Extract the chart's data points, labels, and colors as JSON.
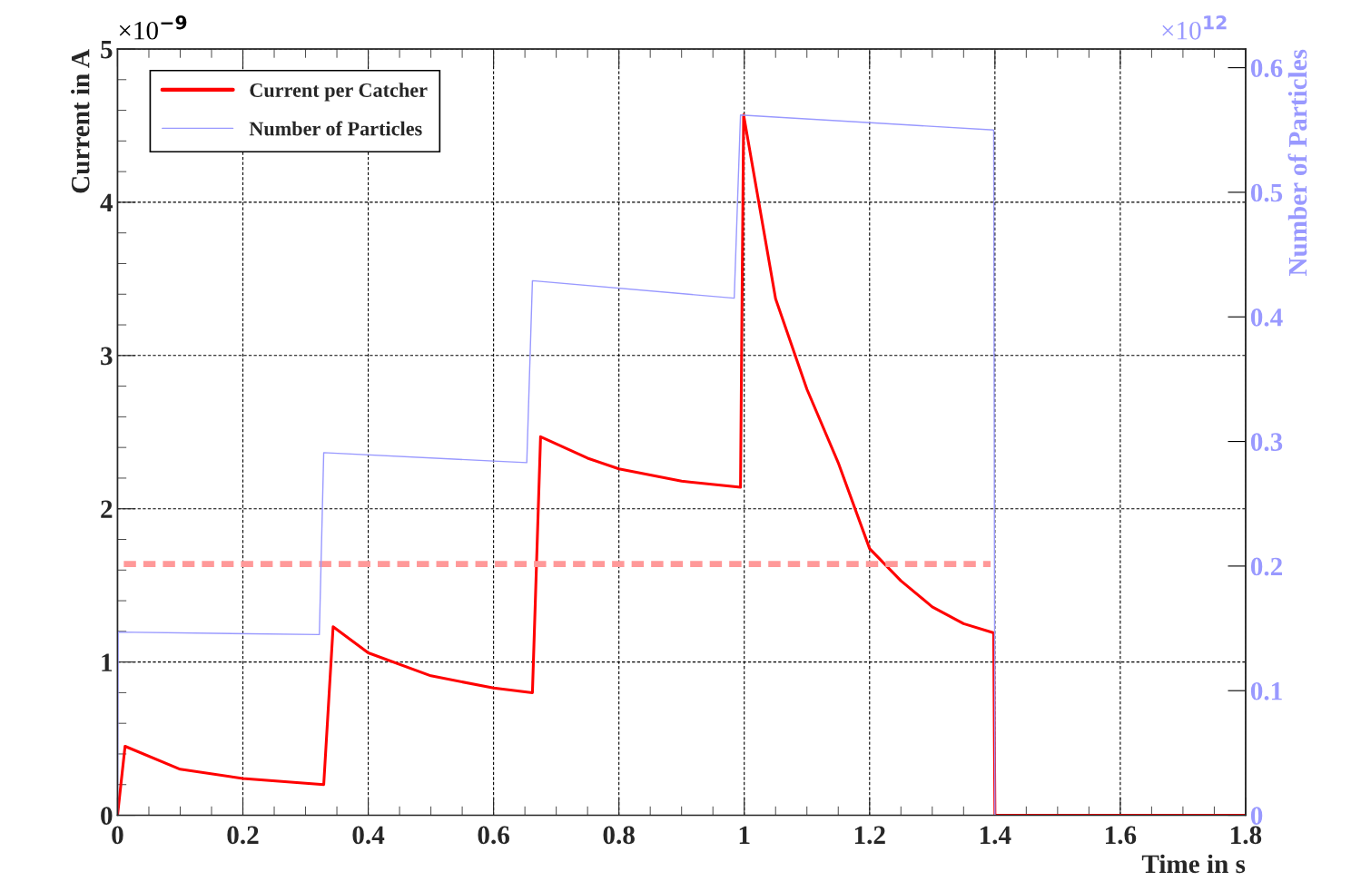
{
  "chart_data": {
    "type": "line",
    "xlabel": "Time in s",
    "ylabel": "Current in A",
    "y2label": "Number of Particles",
    "annotations": [
      "×10$^{−9}$",
      "×10$^{12}$"
    ],
    "xlim": [
      0,
      1.8
    ],
    "xticks": [
      0,
      0.2,
      0.4,
      0.6,
      0.8,
      1,
      1.2,
      1.4,
      1.6,
      1.8
    ],
    "ylim": [
      0,
      5
    ],
    "yticks": [
      0,
      1,
      2,
      3,
      4,
      5
    ],
    "y2lim": [
      0,
      0.615
    ],
    "y2ticks": [
      0,
      0.1,
      0.2,
      0.3,
      0.4,
      0.5,
      0.6
    ],
    "grid": true,
    "legend": "top left",
    "series": [
      {
        "name": "Current per Catcher",
        "color": "#ff0000",
        "axis": "y",
        "line_style": "solid",
        "x": [
          0,
          0.012,
          0.1,
          0.2,
          0.329,
          0.344,
          0.4,
          0.5,
          0.6,
          0.662,
          0.675,
          0.75,
          0.8,
          0.9,
          0.994,
          0.999,
          1.05,
          1.1,
          1.15,
          1.2,
          1.25,
          1.3,
          1.35,
          1.398,
          1.4,
          1.8
        ],
        "values": [
          0,
          0.45,
          0.3,
          0.24,
          0.2,
          1.23,
          1.06,
          0.91,
          0.83,
          0.8,
          2.47,
          2.33,
          2.26,
          2.18,
          2.14,
          4.57,
          3.37,
          2.78,
          2.3,
          1.74,
          1.53,
          1.36,
          1.25,
          1.19,
          0,
          0
        ]
      },
      {
        "name": "Number of Particles",
        "color": "#9999ff",
        "axis": "y2",
        "line_style": "solid",
        "x": [
          0,
          0.001,
          0.322,
          0.329,
          0.653,
          0.662,
          0.984,
          0.994,
          1.398,
          1.4
        ],
        "values": [
          0,
          0.147,
          0.145,
          0.291,
          0.283,
          0.429,
          0.415,
          0.562,
          0.55,
          0
        ]
      },
      {
        "color": "#ff9999",
        "axis": "y",
        "line_style": "dashed",
        "x": [
          0.01,
          1.393
        ],
        "values": [
          1.64,
          1.64
        ]
      }
    ]
  }
}
